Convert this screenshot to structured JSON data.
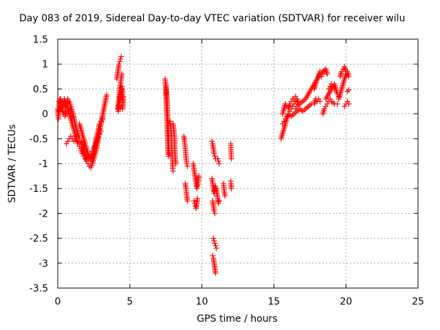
{
  "chart_data": {
    "type": "scatter",
    "title": "Day 083 of 2019, Sidereal Day-to-day VTEC variation (SDTVAR) for receiver wilu",
    "xlabel": "GPS time / hours",
    "ylabel": "SDTVAR / TECUs",
    "xlim": [
      0,
      25
    ],
    "ylim": [
      -3.5,
      1.5
    ],
    "xticks": [
      "0",
      "5",
      "10",
      "15",
      "20",
      "25"
    ],
    "yticks": [
      "1.5",
      "1",
      "0.5",
      "0",
      "-0.5",
      "-1",
      "-1.5",
      "-2",
      "-2.5",
      "-3",
      "-3.5"
    ],
    "grid": true,
    "marker": "+",
    "color": "#ff0000",
    "segments": [
      [
        [
          0.0,
          0.1
        ],
        [
          0.05,
          -0.1
        ],
        [
          0.1,
          0.2
        ],
        [
          0.2,
          0.3
        ],
        [
          0.3,
          0.25
        ],
        [
          0.4,
          0.15
        ],
        [
          0.5,
          0.1
        ],
        [
          0.6,
          0.2
        ],
        [
          0.7,
          0.3
        ],
        [
          0.8,
          0.25
        ],
        [
          0.9,
          0.15
        ],
        [
          1.0,
          0.05
        ],
        [
          1.1,
          -0.05
        ],
        [
          1.2,
          -0.2
        ],
        [
          1.3,
          -0.3
        ],
        [
          1.4,
          -0.4
        ],
        [
          1.5,
          -0.5
        ],
        [
          1.6,
          -0.55
        ],
        [
          1.7,
          -0.65
        ],
        [
          1.8,
          -0.75
        ],
        [
          1.9,
          -0.85
        ],
        [
          2.0,
          -0.95
        ],
        [
          2.1,
          -1.0
        ],
        [
          2.2,
          -1.05
        ],
        [
          2.3,
          -1.08
        ],
        [
          2.4,
          -1.0
        ],
        [
          2.5,
          -0.9
        ],
        [
          2.6,
          -0.8
        ],
        [
          2.7,
          -0.7
        ],
        [
          2.8,
          -0.5
        ],
        [
          2.9,
          -0.35
        ],
        [
          3.0,
          -0.2
        ],
        [
          3.1,
          -0.05
        ],
        [
          3.2,
          0.1
        ],
        [
          3.3,
          0.25
        ],
        [
          3.4,
          0.38
        ]
      ],
      [
        [
          0.1,
          0.05
        ],
        [
          0.2,
          0.15
        ],
        [
          0.3,
          0.1
        ],
        [
          0.4,
          0.0
        ],
        [
          0.5,
          -0.05
        ],
        [
          0.6,
          0.05
        ],
        [
          0.7,
          0.1
        ],
        [
          0.8,
          0.0
        ],
        [
          0.9,
          -0.1
        ],
        [
          1.0,
          -0.2
        ],
        [
          1.1,
          -0.3
        ],
        [
          1.2,
          -0.4
        ],
        [
          1.3,
          -0.5
        ],
        [
          1.4,
          -0.6
        ],
        [
          1.5,
          -0.65
        ],
        [
          1.6,
          -0.7
        ],
        [
          1.7,
          -0.8
        ],
        [
          1.8,
          -0.85
        ],
        [
          1.9,
          -0.9
        ],
        [
          2.0,
          -0.95
        ],
        [
          2.1,
          -0.9
        ],
        [
          2.2,
          -0.85
        ],
        [
          2.3,
          -0.8
        ],
        [
          2.4,
          -0.75
        ],
        [
          2.5,
          -0.7
        ],
        [
          2.6,
          -0.6
        ],
        [
          2.7,
          -0.45
        ],
        [
          2.8,
          -0.35
        ],
        [
          2.9,
          -0.2
        ],
        [
          3.0,
          -0.15
        ],
        [
          3.1,
          -0.1
        ]
      ],
      [
        [
          0.6,
          -0.6
        ],
        [
          0.7,
          -0.55
        ],
        [
          0.8,
          -0.5
        ],
        [
          0.9,
          -0.45
        ],
        [
          1.0,
          -0.5
        ],
        [
          1.1,
          -0.55
        ],
        [
          1.2,
          -0.5
        ],
        [
          1.3,
          -0.45
        ],
        [
          1.4,
          -0.4
        ]
      ],
      [
        [
          0.05,
          0.25
        ],
        [
          0.15,
          0.3
        ],
        [
          0.25,
          0.2
        ],
        [
          0.35,
          0.25
        ],
        [
          0.45,
          0.3
        ],
        [
          0.55,
          0.2
        ],
        [
          0.65,
          0.15
        ],
        [
          0.75,
          0.1
        ]
      ],
      [
        [
          1.5,
          -0.2
        ],
        [
          1.6,
          -0.3
        ],
        [
          1.7,
          -0.4
        ],
        [
          1.8,
          -0.5
        ],
        [
          1.9,
          -0.6
        ],
        [
          2.0,
          -0.7
        ],
        [
          2.1,
          -0.8
        ],
        [
          2.2,
          -0.9
        ],
        [
          2.3,
          -0.95
        ],
        [
          2.4,
          -0.85
        ],
        [
          2.5,
          -0.75
        ],
        [
          2.6,
          -0.65
        ],
        [
          2.7,
          -0.55
        ],
        [
          2.8,
          -0.45
        ],
        [
          2.9,
          -0.4
        ],
        [
          3.0,
          -0.35
        ]
      ],
      [
        [
          4.1,
          0.7
        ],
        [
          4.15,
          0.8
        ],
        [
          4.2,
          0.9
        ],
        [
          4.25,
          1.0
        ],
        [
          4.3,
          1.05
        ],
        [
          4.35,
          1.1
        ],
        [
          4.4,
          1.15
        ]
      ],
      [
        [
          4.15,
          0.1
        ],
        [
          4.2,
          0.2
        ],
        [
          4.25,
          0.35
        ],
        [
          4.3,
          0.5
        ],
        [
          4.35,
          0.6
        ],
        [
          4.4,
          0.7
        ],
        [
          4.45,
          0.8
        ]
      ],
      [
        [
          4.2,
          0.05
        ],
        [
          4.25,
          0.15
        ],
        [
          4.3,
          0.3
        ],
        [
          4.35,
          0.4
        ],
        [
          4.4,
          0.5
        ],
        [
          4.45,
          0.55
        ],
        [
          4.5,
          0.45
        ],
        [
          4.5,
          0.1
        ],
        [
          4.55,
          0.35
        ]
      ],
      [
        [
          7.45,
          0.7
        ],
        [
          7.5,
          0.5
        ],
        [
          7.52,
          0.3
        ],
        [
          7.55,
          0.1
        ],
        [
          7.58,
          -0.1
        ],
        [
          7.6,
          -0.3
        ],
        [
          7.63,
          -0.5
        ],
        [
          7.65,
          -0.7
        ],
        [
          7.68,
          -0.85
        ]
      ],
      [
        [
          7.5,
          0.6
        ],
        [
          7.55,
          0.45
        ],
        [
          7.6,
          0.2
        ],
        [
          7.62,
          0.0
        ],
        [
          7.65,
          -0.2
        ],
        [
          7.68,
          -0.4
        ],
        [
          7.7,
          -0.6
        ],
        [
          7.72,
          -0.8
        ]
      ],
      [
        [
          7.8,
          -0.15
        ],
        [
          7.85,
          -0.3
        ],
        [
          7.9,
          -0.5
        ],
        [
          7.92,
          -0.7
        ],
        [
          7.95,
          -0.9
        ],
        [
          7.98,
          -1.1
        ],
        [
          8.0,
          -1.15
        ]
      ],
      [
        [
          8.0,
          -0.2
        ],
        [
          8.05,
          -0.3
        ],
        [
          8.1,
          -0.5
        ],
        [
          8.12,
          -0.7
        ],
        [
          8.15,
          -0.9
        ],
        [
          8.2,
          -1.0
        ]
      ],
      [
        [
          8.75,
          -0.45
        ],
        [
          8.8,
          -0.55
        ],
        [
          8.85,
          -0.7
        ],
        [
          8.9,
          -0.85
        ],
        [
          8.95,
          -1.0
        ],
        [
          9.0,
          -1.05
        ]
      ],
      [
        [
          8.85,
          -1.4
        ],
        [
          8.9,
          -1.5
        ],
        [
          8.95,
          -1.65
        ],
        [
          9.0,
          -1.75
        ]
      ],
      [
        [
          9.4,
          -1.0
        ],
        [
          9.45,
          -1.1
        ],
        [
          9.5,
          -1.2
        ],
        [
          9.55,
          -1.3
        ],
        [
          9.6,
          -1.4
        ],
        [
          9.65,
          -1.5
        ],
        [
          9.7,
          -1.45
        ],
        [
          9.75,
          -1.35
        ],
        [
          9.8,
          -1.25
        ]
      ],
      [
        [
          9.45,
          -1.75
        ],
        [
          9.5,
          -1.8
        ],
        [
          9.55,
          -1.85
        ],
        [
          9.6,
          -1.9
        ],
        [
          9.65,
          -1.8
        ],
        [
          9.7,
          -1.7
        ]
      ],
      [
        [
          10.7,
          -0.55
        ],
        [
          10.75,
          -0.6
        ],
        [
          10.8,
          -0.7
        ],
        [
          10.85,
          -0.8
        ],
        [
          10.9,
          -0.85
        ],
        [
          10.95,
          -0.9
        ]
      ],
      [
        [
          10.7,
          -1.3
        ],
        [
          10.75,
          -1.4
        ],
        [
          10.8,
          -1.5
        ],
        [
          10.85,
          -1.6
        ],
        [
          10.9,
          -1.55
        ],
        [
          10.95,
          -1.45
        ]
      ],
      [
        [
          10.75,
          -1.75
        ],
        [
          10.8,
          -1.85
        ],
        [
          10.85,
          -1.95
        ],
        [
          10.9,
          -2.0
        ]
      ],
      [
        [
          10.8,
          -2.5
        ],
        [
          10.85,
          -2.55
        ],
        [
          10.9,
          -2.6
        ],
        [
          10.95,
          -2.65
        ],
        [
          11.0,
          -2.7
        ]
      ],
      [
        [
          10.75,
          -2.85
        ],
        [
          10.8,
          -2.9
        ],
        [
          10.85,
          -3.0
        ],
        [
          10.9,
          -3.1
        ],
        [
          10.95,
          -3.2
        ]
      ],
      [
        [
          11.0,
          -1.5
        ],
        [
          11.05,
          -1.6
        ],
        [
          11.1,
          -1.7
        ],
        [
          11.15,
          -1.8
        ],
        [
          11.2,
          -1.75
        ]
      ],
      [
        [
          11.1,
          -0.9
        ],
        [
          11.15,
          -0.95
        ],
        [
          11.2,
          -1.0
        ]
      ],
      [
        [
          11.5,
          -1.4
        ],
        [
          11.55,
          -1.55
        ],
        [
          11.6,
          -1.65
        ]
      ],
      [
        [
          12.0,
          -0.6
        ],
        [
          12.02,
          -0.75
        ],
        [
          12.05,
          -0.9
        ]
      ],
      [
        [
          12.0,
          -1.35
        ],
        [
          12.02,
          -1.4
        ],
        [
          12.05,
          -1.5
        ]
      ],
      [
        [
          15.5,
          -0.5
        ],
        [
          15.6,
          -0.4
        ],
        [
          15.7,
          -0.3
        ],
        [
          15.8,
          -0.2
        ],
        [
          15.9,
          -0.1
        ],
        [
          16.0,
          0.0
        ],
        [
          16.1,
          0.05
        ],
        [
          16.2,
          0.1
        ],
        [
          16.3,
          0.15
        ],
        [
          16.4,
          0.2
        ],
        [
          16.5,
          0.25
        ]
      ],
      [
        [
          15.6,
          0.0
        ],
        [
          15.7,
          0.1
        ],
        [
          15.8,
          0.2
        ],
        [
          15.9,
          0.15
        ],
        [
          16.0,
          0.1
        ],
        [
          16.1,
          0.2
        ],
        [
          16.2,
          0.25
        ],
        [
          16.3,
          0.3
        ],
        [
          16.4,
          0.3
        ],
        [
          16.5,
          0.35
        ],
        [
          16.6,
          0.3
        ],
        [
          16.7,
          0.2
        ]
      ],
      [
        [
          15.6,
          -0.2
        ],
        [
          15.7,
          -0.15
        ],
        [
          15.8,
          -0.1
        ],
        [
          15.9,
          -0.05
        ],
        [
          16.0,
          0.0
        ],
        [
          16.2,
          -0.05
        ],
        [
          16.4,
          0.0
        ],
        [
          16.6,
          0.05
        ],
        [
          16.8,
          0.1
        ],
        [
          17.0,
          0.05
        ],
        [
          17.2,
          0.1
        ],
        [
          17.4,
          0.15
        ],
        [
          17.6,
          0.2
        ]
      ],
      [
        [
          16.5,
          0.1
        ],
        [
          16.6,
          0.15
        ],
        [
          16.8,
          0.2
        ],
        [
          17.0,
          0.25
        ],
        [
          17.2,
          0.3
        ],
        [
          17.4,
          0.4
        ],
        [
          17.6,
          0.5
        ],
        [
          17.8,
          0.6
        ],
        [
          18.0,
          0.7
        ],
        [
          18.2,
          0.8
        ],
        [
          18.4,
          0.85
        ],
        [
          18.6,
          0.9
        ]
      ],
      [
        [
          17.8,
          0.2
        ],
        [
          17.9,
          0.3
        ],
        [
          18.0,
          0.25
        ],
        [
          18.1,
          0.3
        ],
        [
          18.2,
          0.25
        ]
      ],
      [
        [
          17.8,
          0.5
        ],
        [
          17.9,
          0.6
        ],
        [
          18.0,
          0.7
        ],
        [
          18.1,
          0.75
        ],
        [
          18.2,
          0.85
        ]
      ],
      [
        [
          18.3,
          0.75
        ],
        [
          18.4,
          0.8
        ],
        [
          18.5,
          0.85
        ],
        [
          18.6,
          0.9
        ],
        [
          18.7,
          0.8
        ]
      ],
      [
        [
          18.4,
          0.0
        ],
        [
          18.5,
          0.1
        ],
        [
          18.6,
          0.15
        ],
        [
          18.7,
          0.2
        ],
        [
          18.8,
          0.25
        ],
        [
          18.9,
          0.3
        ],
        [
          19.0,
          0.25
        ],
        [
          19.2,
          0.2
        ],
        [
          19.4,
          0.2
        ]
      ],
      [
        [
          18.6,
          0.3
        ],
        [
          18.8,
          0.4
        ],
        [
          19.0,
          0.5
        ],
        [
          19.2,
          0.6
        ],
        [
          19.3,
          0.5
        ],
        [
          19.4,
          0.4
        ],
        [
          19.5,
          0.35
        ]
      ],
      [
        [
          18.8,
          0.5
        ],
        [
          18.9,
          0.55
        ],
        [
          19.0,
          0.6
        ],
        [
          19.1,
          0.55
        ],
        [
          19.2,
          0.5
        ]
      ],
      [
        [
          19.5,
          0.3
        ],
        [
          19.6,
          0.4
        ],
        [
          19.7,
          0.5
        ],
        [
          19.8,
          0.6
        ],
        [
          19.9,
          0.7
        ],
        [
          20.0,
          0.8
        ],
        [
          20.1,
          0.85
        ],
        [
          20.2,
          0.75
        ]
      ],
      [
        [
          19.6,
          0.75
        ],
        [
          19.7,
          0.85
        ],
        [
          19.8,
          0.9
        ],
        [
          19.9,
          0.95
        ],
        [
          20.0,
          0.85
        ]
      ],
      [
        [
          19.9,
          0.15
        ],
        [
          20.0,
          0.2
        ],
        [
          20.1,
          0.25
        ],
        [
          20.2,
          0.2
        ]
      ],
      [
        [
          20.1,
          0.45
        ],
        [
          20.2,
          0.48
        ]
      ]
    ]
  }
}
